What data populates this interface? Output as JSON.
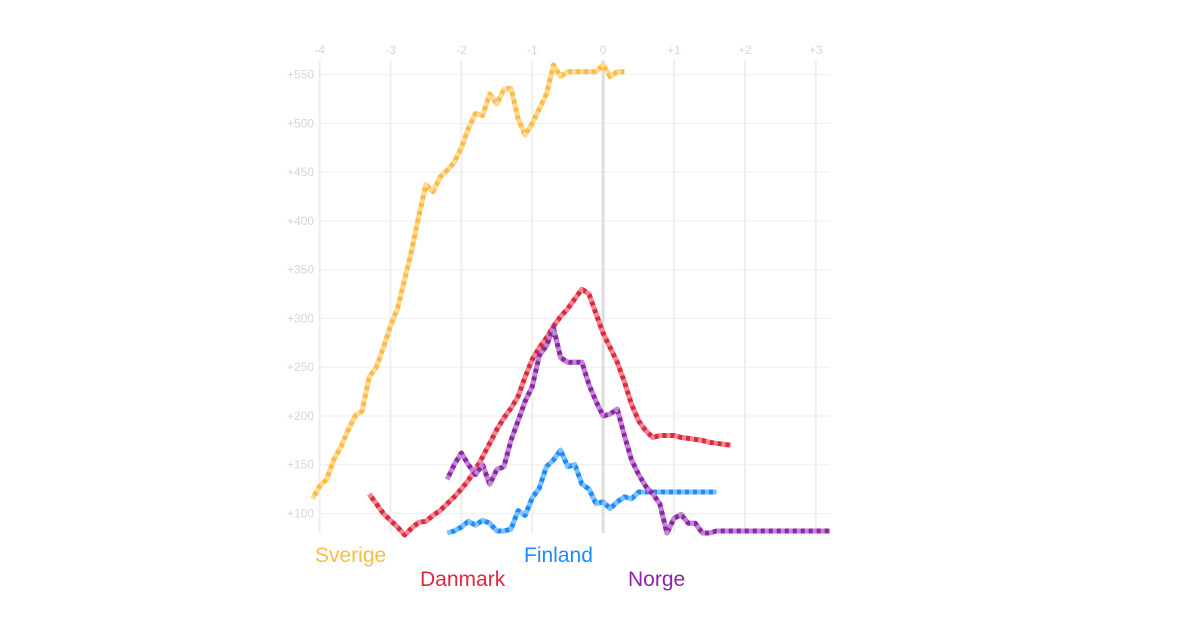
{
  "chart_data": {
    "type": "line",
    "title": "",
    "xlabel": "",
    "ylabel": "",
    "xlim": [
      -4.05,
      3.2
    ],
    "ylim": [
      80,
      565
    ],
    "x_ticks": [
      -4,
      -3,
      -2,
      -1,
      0,
      1,
      2,
      3
    ],
    "x_tick_labels": [
      "-4",
      "-3",
      "-2",
      "-1",
      "0",
      "+1",
      "+2",
      "+3"
    ],
    "y_ticks": [
      100,
      150,
      200,
      250,
      300,
      350,
      400,
      450,
      500,
      550
    ],
    "y_tick_labels": [
      "+100",
      "+150",
      "+200",
      "+250",
      "+300",
      "+350",
      "+400",
      "+450",
      "+500",
      "+550"
    ],
    "grid": true,
    "colors": {
      "grid": "#eeeeee",
      "zero_line": "#dddddd",
      "tick_text": "#d6d6d6",
      "dash_light": "#ffffff"
    },
    "series": [
      {
        "name": "Sverige",
        "color": "#ffba42",
        "x": [
          -4.1,
          -4.0,
          -3.9,
          -3.8,
          -3.7,
          -3.6,
          -3.5,
          -3.4,
          -3.3,
          -3.2,
          -3.1,
          -3.0,
          -2.9,
          -2.8,
          -2.7,
          -2.6,
          -2.5,
          -2.4,
          -2.3,
          -2.2,
          -2.1,
          -2.0,
          -1.9,
          -1.8,
          -1.7,
          -1.6,
          -1.5,
          -1.4,
          -1.3,
          -1.2,
          -1.1,
          -1.0,
          -0.9,
          -0.8,
          -0.7,
          -0.6,
          -0.5,
          -0.4,
          -0.3,
          -0.2,
          -0.1,
          0.0,
          0.1,
          0.2,
          0.3
        ],
        "values": [
          115,
          128,
          135,
          155,
          168,
          185,
          200,
          205,
          240,
          250,
          270,
          292,
          310,
          340,
          370,
          405,
          437,
          430,
          445,
          452,
          460,
          475,
          495,
          510,
          508,
          530,
          520,
          535,
          536,
          505,
          488,
          500,
          515,
          530,
          560,
          548,
          553,
          553,
          553,
          553,
          553,
          560,
          548,
          553,
          553
        ]
      },
      {
        "name": "Danmark",
        "color": "#e0283c",
        "x": [
          -3.3,
          -3.2,
          -3.1,
          -3.0,
          -2.9,
          -2.8,
          -2.7,
          -2.6,
          -2.5,
          -2.4,
          -2.3,
          -2.2,
          -2.1,
          -2.0,
          -1.9,
          -1.8,
          -1.7,
          -1.6,
          -1.5,
          -1.4,
          -1.3,
          -1.2,
          -1.1,
          -1.0,
          -0.9,
          -0.8,
          -0.7,
          -0.6,
          -0.5,
          -0.4,
          -0.3,
          -0.2,
          -0.1,
          0.0,
          0.1,
          0.2,
          0.3,
          0.4,
          0.5,
          0.6,
          0.7,
          0.8,
          0.9,
          1.0,
          1.1,
          1.2,
          1.3,
          1.4,
          1.5,
          1.6,
          1.7,
          1.8
        ],
        "values": [
          120,
          110,
          100,
          93,
          86,
          78,
          85,
          91,
          92,
          98,
          103,
          110,
          117,
          125,
          134,
          145,
          158,
          172,
          186,
          198,
          208,
          220,
          240,
          258,
          270,
          280,
          292,
          302,
          310,
          320,
          330,
          325,
          305,
          285,
          270,
          255,
          235,
          212,
          195,
          185,
          178,
          180,
          180,
          180,
          178,
          177,
          176,
          175,
          173,
          172,
          171,
          170
        ]
      },
      {
        "name": "Finland",
        "color": "#1a8cff",
        "x": [
          -2.2,
          -2.1,
          -2.0,
          -1.9,
          -1.8,
          -1.7,
          -1.6,
          -1.5,
          -1.4,
          -1.3,
          -1.2,
          -1.1,
          -1.0,
          -0.9,
          -0.8,
          -0.7,
          -0.6,
          -0.5,
          -0.4,
          -0.3,
          -0.2,
          -0.1,
          0.0,
          0.1,
          0.2,
          0.3,
          0.4,
          0.5,
          0.6,
          0.7,
          0.8,
          0.9,
          1.0,
          1.1,
          1.2,
          1.3,
          1.4,
          1.5,
          1.6
        ],
        "values": [
          80,
          82,
          86,
          92,
          88,
          93,
          90,
          82,
          82,
          84,
          103,
          98,
          116,
          126,
          148,
          155,
          165,
          148,
          150,
          130,
          125,
          110,
          112,
          105,
          112,
          117,
          115,
          122,
          122,
          122,
          122,
          122,
          122,
          122,
          122,
          122,
          122,
          122,
          122
        ]
      },
      {
        "name": "Norge",
        "color": "#8e24aa",
        "x": [
          -2.2,
          -2.1,
          -2.0,
          -1.9,
          -1.8,
          -1.7,
          -1.6,
          -1.5,
          -1.4,
          -1.3,
          -1.2,
          -1.1,
          -1.0,
          -0.9,
          -0.8,
          -0.7,
          -0.6,
          -0.5,
          -0.4,
          -0.3,
          -0.2,
          -0.1,
          0.0,
          0.1,
          0.2,
          0.3,
          0.4,
          0.5,
          0.6,
          0.7,
          0.8,
          0.9,
          1.0,
          1.1,
          1.2,
          1.3,
          1.4,
          1.5,
          1.6,
          1.7,
          1.8,
          1.9,
          2.0,
          2.1,
          2.2,
          2.3,
          2.4,
          2.5,
          2.6,
          2.7,
          2.8,
          2.9,
          3.0,
          3.1,
          3.2
        ],
        "values": [
          135,
          150,
          162,
          150,
          140,
          150,
          130,
          145,
          148,
          175,
          195,
          215,
          230,
          262,
          272,
          290,
          260,
          255,
          255,
          255,
          232,
          215,
          200,
          202,
          207,
          180,
          155,
          140,
          128,
          120,
          110,
          80,
          95,
          99,
          90,
          90,
          80,
          80,
          82,
          82,
          82,
          82,
          82,
          82,
          82,
          82,
          82,
          82,
          82,
          82,
          82,
          82,
          82,
          82,
          82
        ]
      }
    ],
    "legend": [
      {
        "label": "Sverige",
        "placement": "bottom-left"
      },
      {
        "label": "Danmark",
        "placement": "bottom-left"
      },
      {
        "label": "Finland",
        "placement": "bottom-center"
      },
      {
        "label": "Norge",
        "placement": "bottom-center"
      }
    ]
  }
}
